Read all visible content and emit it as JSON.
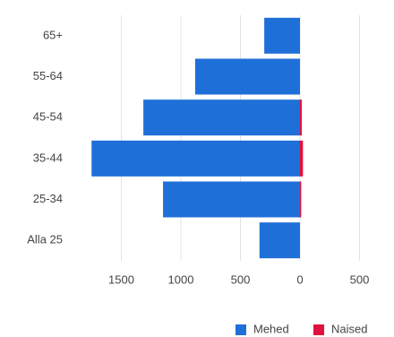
{
  "chart_data": {
    "type": "bar",
    "orientation": "horizontal",
    "categories": [
      "65+",
      "55-64",
      "45-54",
      "35-44",
      "25-34",
      "Alla 25"
    ],
    "series": [
      {
        "name": "Mehed",
        "color": "#1f6fd8",
        "values": [
          -300,
          -880,
          -1315,
          -1750,
          -1150,
          -340
        ]
      },
      {
        "name": "Naised",
        "color": "#e0113d",
        "values": [
          0,
          0,
          15,
          25,
          10,
          0
        ]
      }
    ],
    "xlim": [
      -1800,
      600
    ],
    "xticks": [
      {
        "value": -1500,
        "label": "1500"
      },
      {
        "value": -1000,
        "label": "1000"
      },
      {
        "value": -500,
        "label": "500"
      },
      0,
      500
    ],
    "grid": true,
    "legend": "bottom-right"
  }
}
